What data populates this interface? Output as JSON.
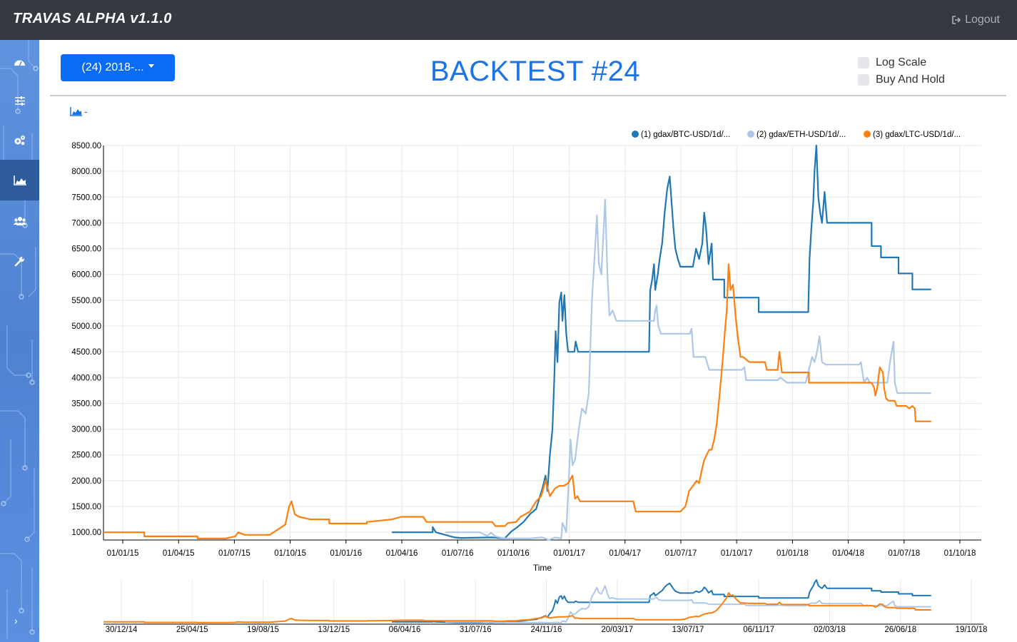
{
  "app": {
    "title": "TRAVAS ALPHA v1.1.0",
    "logout_label": "Logout"
  },
  "sidebar": {
    "items": [
      {
        "name": "dashboard",
        "icon": "dashboard-icon"
      },
      {
        "name": "settings",
        "icon": "sliders-icon"
      },
      {
        "name": "configuration",
        "icon": "gears-icon"
      },
      {
        "name": "backtest-chart",
        "icon": "area-chart-icon",
        "active": true
      },
      {
        "name": "users",
        "icon": "users-icon"
      },
      {
        "name": "tools",
        "icon": "wrench-icon"
      }
    ]
  },
  "toolbar": {
    "backtest_select": "(24) 2018-...",
    "title": "BACKTEST #24",
    "options": [
      {
        "label": "Log Scale",
        "checked": false
      },
      {
        "label": "Buy And Hold",
        "checked": false
      }
    ],
    "chart_type_suffix": "-"
  },
  "colors": {
    "btc": "#1f77b4",
    "eth": "#aec7e8",
    "ltc": "#ff7f0e",
    "accent": "#1a73e8",
    "topbar": "#343a40"
  },
  "chart_data": {
    "type": "line",
    "xlabel": "Time",
    "ylabel": "",
    "ylim": [
      850,
      8500
    ],
    "yticks": [
      "8500.00",
      "8000.00",
      "7500.00",
      "7000.00",
      "6500.00",
      "6000.00",
      "5500.00",
      "5000.00",
      "4500.00",
      "4000.00",
      "3500.00",
      "3000.00",
      "2500.00",
      "2000.00",
      "1500.00",
      "1000.00"
    ],
    "xticks": [
      "01/01/15",
      "01/04/15",
      "01/07/15",
      "01/10/15",
      "01/01/16",
      "01/04/16",
      "01/07/16",
      "01/10/16",
      "01/01/17",
      "01/04/17",
      "01/07/17",
      "01/10/17",
      "01/01/18",
      "01/04/18",
      "01/07/18",
      "01/10/18"
    ],
    "t_min": 0,
    "t_max": 1400,
    "series": [
      {
        "name": "(1) gdax/BTC-USD/1d/...",
        "color": "#1f77b4",
        "points": [
          [
            460,
            1000
          ],
          [
            525,
            1000
          ],
          [
            525,
            1100
          ],
          [
            530,
            1000
          ],
          [
            560,
            900
          ],
          [
            570,
            890
          ],
          [
            620,
            900
          ],
          [
            640,
            880
          ],
          [
            650,
            1010
          ],
          [
            660,
            1100
          ],
          [
            670,
            1200
          ],
          [
            680,
            1350
          ],
          [
            690,
            1450
          ],
          [
            700,
            1850
          ],
          [
            705,
            2100
          ],
          [
            708,
            1800
          ],
          [
            712,
            2500
          ],
          [
            716,
            3000
          ],
          [
            719,
            4000
          ],
          [
            721,
            4900
          ],
          [
            724,
            4300
          ],
          [
            727,
            5450
          ],
          [
            730,
            5650
          ],
          [
            732,
            5100
          ],
          [
            735,
            5600
          ],
          [
            738,
            4850
          ],
          [
            741,
            4500
          ],
          [
            746,
            4500
          ],
          [
            751,
            4500
          ],
          [
            753,
            4700
          ],
          [
            757,
            4500
          ],
          [
            870,
            4500
          ],
          [
            870,
            4500
          ],
          [
            872,
            5700
          ],
          [
            875,
            5900
          ],
          [
            878,
            6200
          ],
          [
            880,
            5700
          ],
          [
            884,
            6000
          ],
          [
            887,
            6300
          ],
          [
            891,
            6600
          ],
          [
            895,
            7200
          ],
          [
            899,
            7650
          ],
          [
            903,
            7900
          ],
          [
            906,
            7400
          ],
          [
            909,
            6900
          ],
          [
            912,
            6500
          ],
          [
            916,
            6300
          ],
          [
            920,
            6150
          ],
          [
            940,
            6150
          ],
          [
            945,
            6500
          ],
          [
            950,
            6300
          ],
          [
            955,
            6600
          ],
          [
            958,
            7200
          ],
          [
            961,
            6900
          ],
          [
            965,
            6200
          ],
          [
            970,
            6600
          ],
          [
            972,
            5900
          ],
          [
            990,
            5900
          ],
          [
            990,
            5550
          ],
          [
            1045,
            5550
          ],
          [
            1045,
            5270
          ],
          [
            1124,
            5270
          ],
          [
            1126,
            6300
          ],
          [
            1129,
            6900
          ],
          [
            1132,
            7400
          ],
          [
            1134,
            8000
          ],
          [
            1137,
            8500
          ],
          [
            1140,
            7500
          ],
          [
            1143,
            7200
          ],
          [
            1146,
            7000
          ],
          [
            1150,
            7600
          ],
          [
            1154,
            7000
          ],
          [
            1225,
            7000
          ],
          [
            1225,
            6550
          ],
          [
            1240,
            6550
          ],
          [
            1240,
            6330
          ],
          [
            1268,
            6330
          ],
          [
            1268,
            6020
          ],
          [
            1290,
            6020
          ],
          [
            1290,
            5710
          ],
          [
            1320,
            5710
          ]
        ]
      },
      {
        "name": "(2) gdax/ETH-USD/1d/...",
        "color": "#aec7e8",
        "points": [
          [
            545,
            1000
          ],
          [
            600,
            1000
          ],
          [
            612,
            930
          ],
          [
            618,
            990
          ],
          [
            625,
            920
          ],
          [
            640,
            880
          ],
          [
            680,
            880
          ],
          [
            700,
            900
          ],
          [
            710,
            850
          ],
          [
            720,
            900
          ],
          [
            730,
            880
          ],
          [
            732,
            1180
          ],
          [
            735,
            1100
          ],
          [
            738,
            1000
          ],
          [
            742,
            2000
          ],
          [
            745,
            2800
          ],
          [
            748,
            2300
          ],
          [
            752,
            2400
          ],
          [
            758,
            3000
          ],
          [
            763,
            3400
          ],
          [
            769,
            3300
          ],
          [
            774,
            3700
          ],
          [
            779,
            5500
          ],
          [
            784,
            6500
          ],
          [
            787,
            7150
          ],
          [
            790,
            6200
          ],
          [
            794,
            6000
          ],
          [
            800,
            7450
          ],
          [
            804,
            5900
          ],
          [
            807,
            5200
          ],
          [
            812,
            5300
          ],
          [
            818,
            5100
          ],
          [
            878,
            5100
          ],
          [
            880,
            5300
          ],
          [
            882,
            5400
          ],
          [
            885,
            5000
          ],
          [
            889,
            4850
          ],
          [
            935,
            4850
          ],
          [
            938,
            4950
          ],
          [
            941,
            4400
          ],
          [
            947,
            4400
          ],
          [
            954,
            4400
          ],
          [
            960,
            4400
          ],
          [
            966,
            4150
          ],
          [
            1018,
            4150
          ],
          [
            1022,
            4200
          ],
          [
            1025,
            3950
          ],
          [
            1075,
            3950
          ],
          [
            1080,
            4000
          ],
          [
            1090,
            3900
          ],
          [
            1120,
            3900
          ],
          [
            1126,
            4200
          ],
          [
            1130,
            4400
          ],
          [
            1134,
            4300
          ],
          [
            1138,
            4500
          ],
          [
            1142,
            4800
          ],
          [
            1146,
            4300
          ],
          [
            1152,
            4250
          ],
          [
            1205,
            4250
          ],
          [
            1208,
            4300
          ],
          [
            1213,
            3900
          ],
          [
            1218,
            4000
          ],
          [
            1222,
            3900
          ],
          [
            1250,
            3900
          ],
          [
            1255,
            4350
          ],
          [
            1260,
            4700
          ],
          [
            1262,
            3900
          ],
          [
            1266,
            3700
          ],
          [
            1320,
            3700
          ]
        ]
      },
      {
        "name": "(3) gdax/LTC-USD/1d/...",
        "color": "#ff7f0e",
        "points": [
          [
            0,
            1000
          ],
          [
            65,
            1000
          ],
          [
            65,
            920
          ],
          [
            150,
            920
          ],
          [
            150,
            880
          ],
          [
            195,
            880
          ],
          [
            210,
            920
          ],
          [
            215,
            1000
          ],
          [
            225,
            950
          ],
          [
            265,
            950
          ],
          [
            290,
            1150
          ],
          [
            296,
            1500
          ],
          [
            300,
            1600
          ],
          [
            305,
            1350
          ],
          [
            312,
            1300
          ],
          [
            330,
            1250
          ],
          [
            360,
            1250
          ],
          [
            360,
            1170
          ],
          [
            420,
            1170
          ],
          [
            420,
            1200
          ],
          [
            460,
            1250
          ],
          [
            475,
            1300
          ],
          [
            510,
            1300
          ],
          [
            515,
            1200
          ],
          [
            620,
            1200
          ],
          [
            625,
            1120
          ],
          [
            640,
            1120
          ],
          [
            645,
            1180
          ],
          [
            658,
            1200
          ],
          [
            665,
            1300
          ],
          [
            680,
            1400
          ],
          [
            690,
            1600
          ],
          [
            698,
            1700
          ],
          [
            705,
            2000
          ],
          [
            712,
            1700
          ],
          [
            720,
            1850
          ],
          [
            727,
            1900
          ],
          [
            734,
            1900
          ],
          [
            741,
            1950
          ],
          [
            748,
            2100
          ],
          [
            752,
            1650
          ],
          [
            756,
            1700
          ],
          [
            760,
            1600
          ],
          [
            845,
            1600
          ],
          [
            849,
            1400
          ],
          [
            920,
            1400
          ],
          [
            928,
            1500
          ],
          [
            934,
            1800
          ],
          [
            940,
            1900
          ],
          [
            946,
            2000
          ],
          [
            950,
            1950
          ],
          [
            954,
            2200
          ],
          [
            958,
            2400
          ],
          [
            962,
            2500
          ],
          [
            966,
            2600
          ],
          [
            970,
            2600
          ],
          [
            974,
            2800
          ],
          [
            978,
            3100
          ],
          [
            982,
            3600
          ],
          [
            985,
            4000
          ],
          [
            988,
            4400
          ],
          [
            991,
            4900
          ],
          [
            994,
            5300
          ],
          [
            997,
            6200
          ],
          [
            1000,
            5700
          ],
          [
            1004,
            5800
          ],
          [
            1008,
            5200
          ],
          [
            1012,
            4750
          ],
          [
            1016,
            4400
          ],
          [
            1020,
            4400
          ],
          [
            1030,
            4300
          ],
          [
            1055,
            4300
          ],
          [
            1058,
            4150
          ],
          [
            1075,
            4150
          ],
          [
            1078,
            4500
          ],
          [
            1082,
            4100
          ],
          [
            1095,
            4100
          ],
          [
            1125,
            4100
          ],
          [
            1125,
            3900
          ],
          [
            1225,
            3900
          ],
          [
            1229,
            3800
          ],
          [
            1231,
            3650
          ],
          [
            1234,
            3800
          ],
          [
            1238,
            4200
          ],
          [
            1243,
            4100
          ],
          [
            1245,
            3800
          ],
          [
            1248,
            3600
          ],
          [
            1252,
            3550
          ],
          [
            1262,
            3550
          ],
          [
            1265,
            3450
          ],
          [
            1280,
            3450
          ],
          [
            1285,
            3400
          ],
          [
            1290,
            3450
          ],
          [
            1294,
            3400
          ],
          [
            1295,
            3150
          ],
          [
            1320,
            3150
          ]
        ]
      }
    ],
    "navigator": {
      "xticks": [
        "30/12/14",
        "25/04/15",
        "19/08/15",
        "13/12/15",
        "06/04/16",
        "31/07/16",
        "24/11/16",
        "20/03/17",
        "13/07/17",
        "06/11/17",
        "02/03/18",
        "26/06/18",
        "19/10/18"
      ]
    }
  }
}
